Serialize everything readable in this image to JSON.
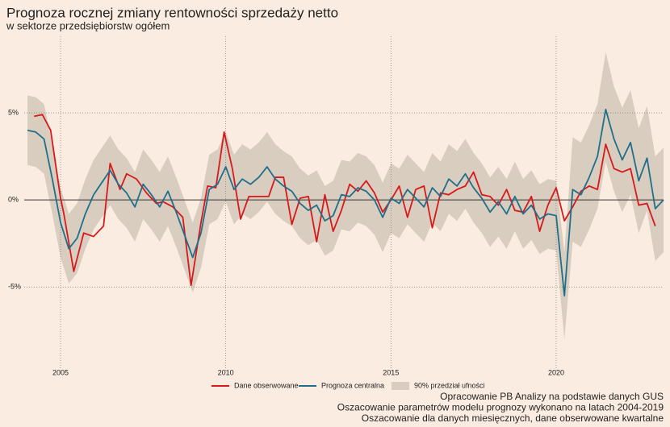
{
  "chart_data": {
    "type": "line",
    "title": "Prognoza rocznej zmiany rentowności sprzedaży netto",
    "subtitle": "w sektorze przedsiębiorstw ogółem",
    "xlim": [
      2003.9,
      2023.25
    ],
    "ylim": [
      -9.8,
      9.4
    ],
    "xticks": [
      2005,
      2010,
      2015,
      2020
    ],
    "yticks": [
      {
        "value": 5,
        "label": "5%"
      },
      {
        "value": 0,
        "label": "0%"
      },
      {
        "value": -5,
        "label": "-5%"
      }
    ],
    "grid": true,
    "series": [
      {
        "name": "Dane obserwowane",
        "color": "#d7191c",
        "x": [
          2004.2,
          2004.45,
          2004.7,
          2005.0,
          2005.1,
          2005.4,
          2005.7,
          2006.0,
          2006.3,
          2006.5,
          2006.8,
          2007.0,
          2007.3,
          2007.6,
          2007.9,
          2008.1,
          2008.4,
          2008.7,
          2008.95,
          2009.25,
          2009.45,
          2009.7,
          2009.95,
          2010.2,
          2010.45,
          2010.7,
          2011.0,
          2011.3,
          2011.5,
          2011.75,
          2012.0,
          2012.25,
          2012.5,
          2012.75,
          2013.0,
          2013.25,
          2013.5,
          2013.75,
          2014.0,
          2014.25,
          2014.5,
          2014.75,
          2015.0,
          2015.25,
          2015.5,
          2015.75,
          2016.0,
          2016.25,
          2016.5,
          2016.75,
          2017.0,
          2017.25,
          2017.5,
          2017.75,
          2018.0,
          2018.25,
          2018.5,
          2018.75,
          2019.0,
          2019.25,
          2019.5,
          2019.75,
          2020.0,
          2020.25,
          2020.5,
          2020.75,
          2021.0,
          2021.25,
          2021.5,
          2021.75,
          2022.0,
          2022.25,
          2022.5,
          2022.75,
          2023.0
        ],
        "values": [
          4.8,
          4.9,
          4.0,
          0.1,
          -0.8,
          -4.1,
          -1.9,
          -2.1,
          -1.5,
          2.1,
          0.6,
          1.5,
          1.2,
          0.4,
          -0.2,
          -0.1,
          -0.4,
          -1.0,
          -4.9,
          -1.3,
          0.8,
          0.7,
          3.9,
          1.8,
          -1.1,
          0.2,
          0.2,
          0.2,
          1.3,
          1.3,
          -1.4,
          0.1,
          0.2,
          -2.4,
          0.3,
          -1.8,
          -0.6,
          0.9,
          0.5,
          1.1,
          0.4,
          -0.7,
          0.0,
          0.8,
          -1.0,
          0.6,
          0.8,
          -1.6,
          0.4,
          0.3,
          0.6,
          0.8,
          1.6,
          0.3,
          0.2,
          -0.3,
          0.6,
          -0.6,
          -0.7,
          0.2,
          -1.8,
          -0.3,
          0.7,
          -1.2,
          -0.4,
          0.5,
          0.8,
          0.6,
          3.2,
          1.8,
          1.6,
          1.8,
          -0.3,
          -0.2,
          -1.5
        ]
      },
      {
        "name": "Prognoza centralna",
        "color": "#1f6f8b",
        "x": [
          2004.0,
          2004.25,
          2004.5,
          2004.75,
          2005.0,
          2005.25,
          2005.5,
          2005.75,
          2006.0,
          2006.25,
          2006.5,
          2006.75,
          2007.0,
          2007.25,
          2007.5,
          2007.75,
          2008.0,
          2008.25,
          2008.5,
          2008.75,
          2009.0,
          2009.25,
          2009.5,
          2009.75,
          2010.0,
          2010.25,
          2010.5,
          2010.75,
          2011.0,
          2011.25,
          2011.5,
          2011.75,
          2012.0,
          2012.25,
          2012.5,
          2012.75,
          2013.0,
          2013.25,
          2013.5,
          2013.75,
          2014.0,
          2014.25,
          2014.5,
          2014.75,
          2015.0,
          2015.25,
          2015.5,
          2015.75,
          2016.0,
          2016.25,
          2016.5,
          2016.75,
          2017.0,
          2017.25,
          2017.5,
          2017.75,
          2018.0,
          2018.25,
          2018.5,
          2018.75,
          2019.0,
          2019.25,
          2019.5,
          2019.75,
          2020.0,
          2020.25,
          2020.5,
          2020.75,
          2021.0,
          2021.25,
          2021.5,
          2021.75,
          2022.0,
          2022.25,
          2022.5,
          2022.75,
          2023.0,
          2023.25
        ],
        "values": [
          4.0,
          3.9,
          3.5,
          1.2,
          -1.3,
          -2.8,
          -2.2,
          -0.8,
          0.3,
          1.0,
          1.7,
          0.9,
          0.4,
          -0.4,
          0.9,
          0.3,
          -0.4,
          0.5,
          -0.7,
          -2.0,
          -3.3,
          -1.9,
          0.6,
          0.9,
          1.9,
          0.6,
          1.2,
          0.9,
          1.3,
          1.9,
          1.2,
          0.8,
          0.5,
          -0.2,
          -0.6,
          -0.3,
          -1.2,
          -0.9,
          0.3,
          0.2,
          0.7,
          0.5,
          0.0,
          -1.0,
          0.1,
          -0.2,
          0.6,
          0.1,
          -0.4,
          0.7,
          0.2,
          1.2,
          0.8,
          1.5,
          0.7,
          0.1,
          -0.7,
          -0.1,
          -0.8,
          0.2,
          -0.8,
          -0.3,
          -1.1,
          -0.8,
          -0.9,
          -5.5,
          0.6,
          0.3,
          1.3,
          2.5,
          5.2,
          3.5,
          2.3,
          3.3,
          1.1,
          2.4,
          -0.5,
          0.0
        ]
      }
    ],
    "band": {
      "name": "90% przedział ufności",
      "color": "#d9cdbf",
      "upper": [
        6.0,
        5.9,
        5.5,
        3.2,
        0.7,
        -0.8,
        -0.2,
        1.2,
        2.3,
        3.0,
        3.7,
        2.9,
        2.4,
        1.6,
        2.9,
        2.3,
        1.6,
        2.5,
        1.3,
        0.0,
        -1.3,
        0.1,
        2.6,
        2.9,
        3.9,
        2.6,
        3.2,
        2.9,
        3.3,
        3.9,
        3.2,
        2.8,
        2.5,
        1.8,
        1.4,
        1.7,
        0.8,
        1.1,
        2.3,
        2.2,
        2.7,
        2.5,
        2.0,
        1.0,
        2.1,
        1.8,
        2.6,
        2.1,
        1.6,
        2.7,
        2.2,
        3.2,
        2.8,
        3.5,
        2.7,
        2.1,
        1.3,
        1.9,
        1.2,
        2.2,
        1.2,
        1.7,
        0.9,
        1.2,
        1.1,
        -3.0,
        3.6,
        3.3,
        4.3,
        5.5,
        8.5,
        6.5,
        5.3,
        6.3,
        4.1,
        5.4,
        2.5,
        3.0
      ],
      "lower": [
        2.0,
        1.9,
        1.5,
        -0.8,
        -3.3,
        -4.8,
        -4.2,
        -2.8,
        -1.7,
        -1.0,
        -0.3,
        -1.1,
        -1.6,
        -2.4,
        -1.1,
        -1.7,
        -2.4,
        -1.5,
        -2.7,
        -4.0,
        -5.3,
        -3.9,
        -1.4,
        -1.1,
        -0.1,
        -1.4,
        -0.8,
        -1.1,
        -0.7,
        -0.1,
        -0.8,
        -1.2,
        -1.5,
        -2.2,
        -2.6,
        -2.3,
        -3.2,
        -2.9,
        -1.7,
        -1.8,
        -1.3,
        -1.5,
        -2.0,
        -3.0,
        -1.9,
        -2.2,
        -1.4,
        -1.9,
        -2.4,
        -1.3,
        -1.8,
        -0.8,
        -1.2,
        -0.5,
        -1.3,
        -1.9,
        -2.7,
        -2.1,
        -2.8,
        -1.8,
        -2.8,
        -2.3,
        -3.1,
        -2.8,
        -2.9,
        -8.0,
        -2.4,
        -2.7,
        -1.7,
        -0.5,
        2.2,
        0.5,
        -0.7,
        0.3,
        -1.9,
        -0.6,
        -3.5,
        -3.0
      ]
    },
    "notes": [
      "Opracowanie PB Analizy na podstawie danych GUS",
      "Oszacowanie parametrów modelu prognozy wykonano na latach 2004-2019",
      "Oszacowanie dla danych miesięcznych, dane obserwowane kwartalne"
    ]
  }
}
